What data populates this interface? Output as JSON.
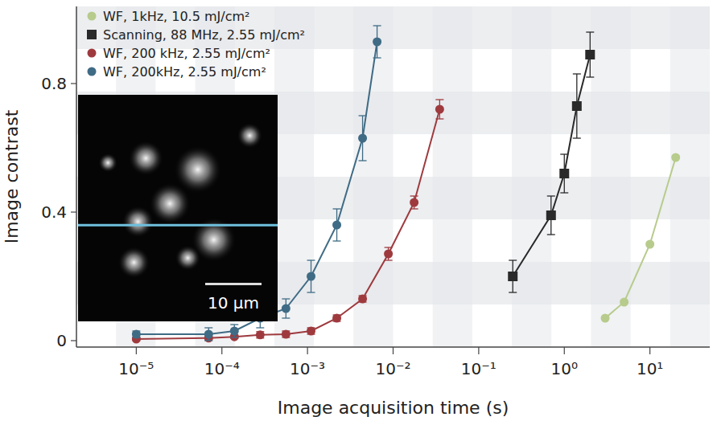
{
  "chart_data": {
    "type": "line",
    "log": "x",
    "grid": false,
    "legend": "upper left",
    "marker": "circle",
    "x_label": "Image acquisition time (s)",
    "y_label": "Image contrast",
    "annotation": "10 µm",
    "xlim": [
      2e-06,
      50
    ],
    "ylim": [
      -0.02,
      1.04
    ],
    "xticks": [
      {
        "value": 1e-05,
        "label": "10⁻⁵"
      },
      {
        "value": 0.0001,
        "label": "10⁻⁴"
      },
      {
        "value": 0.001,
        "label": "10⁻³"
      },
      {
        "value": 0.01,
        "label": "10⁻²"
      },
      {
        "value": 0.1,
        "label": "10⁻¹"
      },
      {
        "value": 1,
        "label": "10⁰"
      },
      {
        "value": 10,
        "label": "10¹"
      }
    ],
    "yticks": [
      0,
      0.4,
      0.8
    ],
    "series": [
      {
        "name": "WF, 1kHz, 10.5 mJ/cm²",
        "color": "#b7cb8c",
        "marker": "circle",
        "x": [
          3,
          5,
          10,
          20
        ],
        "values": [
          0.07,
          0.12,
          0.3,
          0.57
        ]
      },
      {
        "name": "Scanning, 88 MHz, 2.55 mJ/cm²",
        "color": "#2a2a2a",
        "marker": "square",
        "x": [
          0.25,
          0.7,
          1.0,
          1.4,
          2.0
        ],
        "values": [
          0.2,
          0.39,
          0.52,
          0.73,
          0.89
        ],
        "errors": [
          0.05,
          0.06,
          0.06,
          0.1,
          0.07
        ]
      },
      {
        "name": "WF, 200 kHz, 2.55 mJ/cm²",
        "color": "#9e3a3e",
        "marker": "circle",
        "x": [
          1e-05,
          7e-05,
          0.00014,
          0.00028,
          0.00056,
          0.0011,
          0.0022,
          0.0044,
          0.0088,
          0.0176,
          0.035
        ],
        "values": [
          0.005,
          0.008,
          0.012,
          0.018,
          0.02,
          0.03,
          0.07,
          0.13,
          0.27,
          0.43,
          0.72
        ],
        "errors": [
          0.005,
          0.005,
          0.005,
          0.01,
          0.01,
          0.01,
          0.01,
          0.01,
          0.02,
          0.02,
          0.03
        ]
      },
      {
        "name": "WF, 200kHz, 2.55 mJ/cm²",
        "color": "#3f6b85",
        "marker": "circle",
        "x": [
          1e-05,
          7e-05,
          0.00014,
          0.00028,
          0.00056,
          0.0011,
          0.0022,
          0.0044,
          0.0065
        ],
        "values": [
          0.02,
          0.02,
          0.03,
          0.07,
          0.1,
          0.2,
          0.36,
          0.63,
          0.93
        ],
        "errors": [
          0.01,
          0.02,
          0.02,
          0.03,
          0.03,
          0.05,
          0.05,
          0.07,
          0.05
        ]
      }
    ]
  }
}
